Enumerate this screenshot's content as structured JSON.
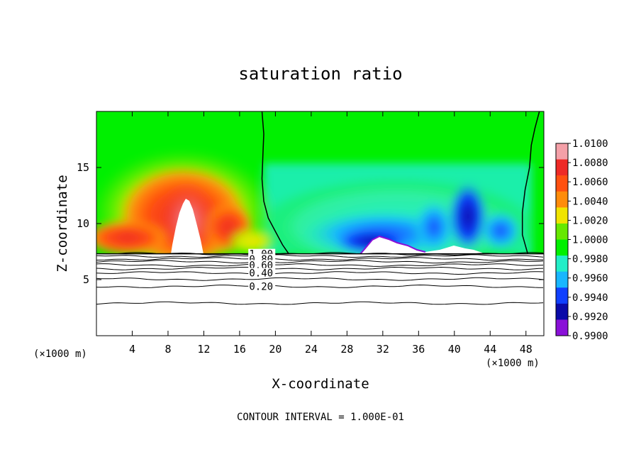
{
  "chart_data": {
    "type": "heatmap",
    "title": "saturation ratio",
    "xlabel": "X-coordinate",
    "ylabel": "Z-coordinate",
    "x_unit_left": "(×1000 m)",
    "x_unit_right": "(×1000 m)",
    "xlim": [
      0,
      50
    ],
    "ylim": [
      0,
      20
    ],
    "xticks": [
      4,
      8,
      12,
      16,
      20,
      24,
      28,
      32,
      36,
      40,
      44,
      48
    ],
    "yticks": [
      5,
      10,
      15
    ],
    "footer": "CONTOUR INTERVAL = 1.000E-01",
    "colorbar": {
      "levels": [
        "1.0100",
        "1.0080",
        "1.0060",
        "1.0040",
        "1.0020",
        "1.0000",
        "0.9980",
        "0.9960",
        "0.9940",
        "0.9920",
        "0.9900"
      ],
      "values": [
        1.01,
        1.008,
        1.006,
        1.004,
        1.002,
        1.0,
        0.998,
        0.996,
        0.994,
        0.992,
        0.99
      ],
      "colors": [
        "#f4a0a8",
        "#ee2a26",
        "#ff5010",
        "#ff8c0a",
        "#f0e400",
        "#66e800",
        "#00f000",
        "#22eec8",
        "#18b6ff",
        "#1040ff",
        "#0a0aa8",
        "#8a10d8"
      ]
    },
    "surface_height_km": 7.3,
    "contour_labels": [
      "1.00",
      "0.80",
      "0.60",
      "0.40",
      "0.20"
    ],
    "contour_levels": [
      1.0,
      0.9,
      0.8,
      0.7,
      0.6,
      0.5,
      0.4,
      0.3,
      0.2,
      0.1
    ],
    "contour_heights_km": [
      7.3,
      7.1,
      6.85,
      6.6,
      6.3,
      6.0,
      5.6,
      5.05,
      4.4,
      2.9
    ],
    "saturated_contour_x": [
      [
        [
          18.5,
          20.0
        ],
        [
          18.7,
          18.0
        ],
        [
          18.6,
          16.0
        ],
        [
          18.5,
          14.0
        ],
        [
          18.7,
          12.0
        ],
        [
          19.2,
          10.5
        ],
        [
          20.0,
          9.3
        ],
        [
          20.8,
          8.1
        ],
        [
          21.5,
          7.3
        ]
      ],
      [
        [
          49.5,
          20.0
        ],
        [
          49.0,
          18.5
        ],
        [
          48.6,
          17.0
        ],
        [
          48.4,
          15.0
        ],
        [
          47.9,
          13.0
        ],
        [
          47.6,
          11.0
        ],
        [
          47.6,
          9.0
        ],
        [
          48.2,
          7.3
        ]
      ]
    ],
    "white_regions": [
      {
        "x": [
          8.5,
          12.5
        ],
        "peak_z": 12.3,
        "note": "supersaturation above colour scale"
      },
      {
        "x": [
          29.5,
          34.5
        ],
        "peak_z": 8.9,
        "note": "subsaturation below colour scale"
      }
    ]
  }
}
